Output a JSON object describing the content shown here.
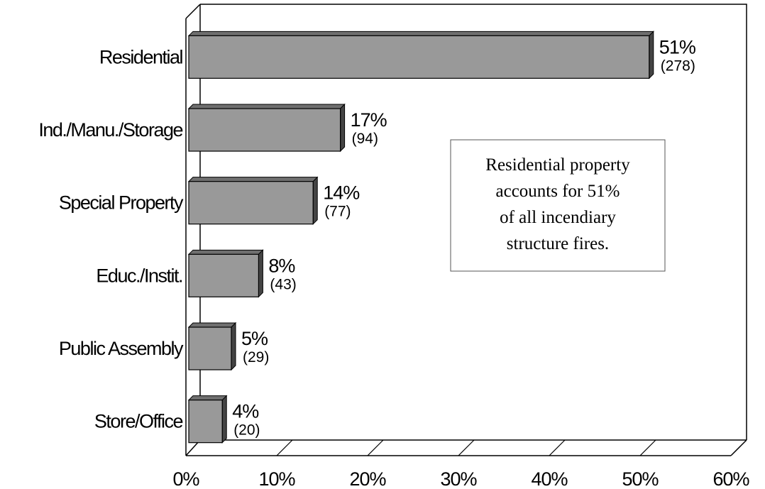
{
  "chart_data": {
    "type": "bar",
    "orientation": "horizontal",
    "categories": [
      "Residential",
      "Ind./Manu./Storage",
      "Special Property",
      "Educ./Instit.",
      "Public Assembly",
      "Store/Office"
    ],
    "values": [
      51,
      17,
      14,
      8,
      5,
      4
    ],
    "value_labels": [
      "51%",
      "17%",
      "14%",
      "8%",
      "5%",
      "4%"
    ],
    "count_labels": [
      "(278)",
      "(94)",
      "(77)",
      "(43)",
      "(29)",
      "(20)"
    ],
    "xlim": [
      0,
      60
    ],
    "x_ticks": [
      0,
      10,
      20,
      30,
      40,
      50,
      60
    ],
    "x_tick_labels": [
      "0%",
      "10%",
      "20%",
      "30%",
      "40%",
      "50%",
      "60%"
    ],
    "grid": false,
    "bar_color": "#999999",
    "annotation": {
      "lines": [
        "Residential property",
        "accounts for 51%",
        "of all incendiary",
        "structure fires."
      ]
    }
  }
}
